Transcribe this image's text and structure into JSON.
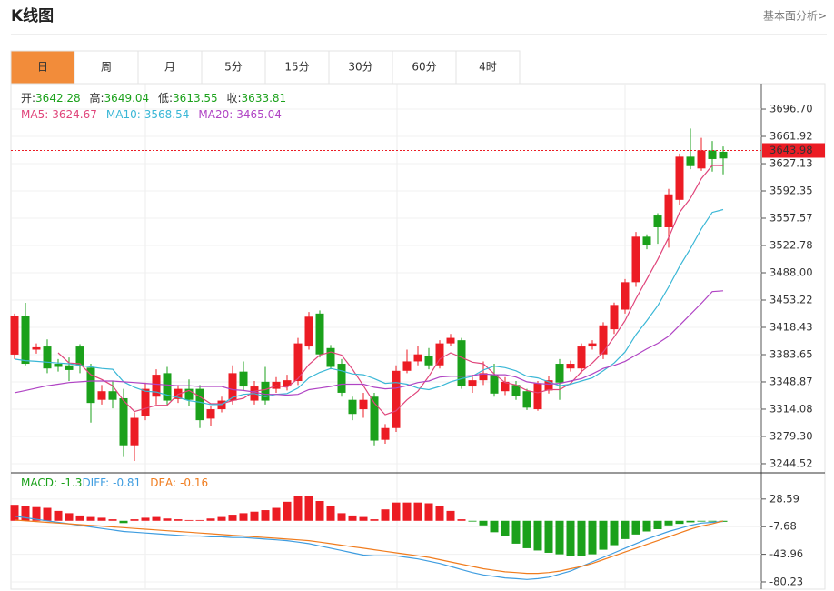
{
  "header": {
    "title": "K线图",
    "link": "基本面分析>"
  },
  "tabs": {
    "items": [
      "日",
      "周",
      "月",
      "5分",
      "15分",
      "30分",
      "60分",
      "4时"
    ],
    "active": 0
  },
  "legend_labels": {
    "open": "开:",
    "high": "高:",
    "low": "低:",
    "close": "收:"
  },
  "chart_data": [
    {
      "type": "candlestick",
      "up_color": "#ec1c24",
      "down_color": "#1ba11b",
      "open": [
        3383.7,
        3433.5,
        3390,
        3394,
        3372,
        3370,
        3394,
        3367,
        3326,
        3337,
        3328,
        3268,
        3305,
        3330,
        3360,
        3327,
        3340,
        3340,
        3302,
        3314,
        3325,
        3362,
        3325,
        3349,
        3340,
        3343,
        3350,
        3394,
        3436,
        3392,
        3372,
        3326,
        3314,
        3330,
        3275,
        3290,
        3363,
        3375,
        3382,
        3370,
        3398,
        3402,
        3343,
        3351,
        3358,
        3337,
        3345,
        3337,
        3314,
        3338,
        3372,
        3366,
        3366,
        3394,
        3384,
        3416,
        3441,
        3476,
        3534,
        3561,
        3546,
        3581,
        3636,
        3621,
        3644,
        3642.28
      ],
      "high": [
        3436,
        3449.7,
        3398,
        3403,
        3378,
        3380,
        3397,
        3372,
        3345,
        3350,
        3340,
        3310,
        3348,
        3365,
        3368,
        3345,
        3352,
        3345,
        3318,
        3330,
        3370,
        3375,
        3350,
        3368,
        3355,
        3358,
        3405,
        3438,
        3440,
        3396,
        3378,
        3330,
        3335,
        3335,
        3295,
        3370,
        3390,
        3395,
        3392,
        3402,
        3410,
        3405,
        3358,
        3375,
        3372,
        3355,
        3350,
        3340,
        3350,
        3356,
        3378,
        3376,
        3398,
        3402,
        3425,
        3450,
        3480,
        3540,
        3537,
        3564,
        3595,
        3640,
        3672,
        3660,
        3656,
        3649.04
      ],
      "low": [
        3378,
        3370,
        3385,
        3360,
        3362,
        3350,
        3360,
        3297,
        3320,
        3315,
        3253,
        3248,
        3300,
        3320,
        3320,
        3322,
        3318,
        3290,
        3293,
        3310,
        3320,
        3338,
        3320,
        3320,
        3335,
        3338,
        3345,
        3390,
        3380,
        3365,
        3330,
        3300,
        3303,
        3268,
        3270,
        3285,
        3360,
        3370,
        3365,
        3366,
        3395,
        3340,
        3335,
        3345,
        3330,
        3332,
        3326,
        3313,
        3312,
        3334,
        3326,
        3362,
        3360,
        3390,
        3378,
        3410,
        3436,
        3470,
        3518,
        3525,
        3520,
        3575,
        3620,
        3618,
        3617,
        3613.55
      ],
      "close": [
        3432.4,
        3372,
        3393,
        3366,
        3368,
        3364,
        3370,
        3322,
        3337,
        3326,
        3268,
        3303,
        3340,
        3358,
        3325,
        3340,
        3326,
        3300,
        3314,
        3325,
        3360,
        3343,
        3343,
        3325,
        3349,
        3351,
        3398,
        3432,
        3384,
        3368,
        3335,
        3308,
        3326,
        3274,
        3290,
        3363,
        3375,
        3384,
        3370,
        3398,
        3405,
        3344,
        3351,
        3360,
        3334,
        3349,
        3331,
        3316,
        3347,
        3351,
        3348,
        3372,
        3394,
        3398,
        3421,
        3447,
        3476,
        3534,
        3523,
        3546,
        3588,
        3636,
        3624,
        3644,
        3633,
        3633.81
      ],
      "series": [
        {
          "name": "MA5:",
          "color": "#e0457b",
          "values": [
            null,
            null,
            null,
            null,
            3386,
            3373,
            3372,
            3358,
            3352,
            3344,
            3325,
            3311,
            3315,
            3319,
            3319,
            3333,
            3338,
            3330,
            3321,
            3321,
            3325,
            3328,
            3337,
            3339,
            3344,
            3342,
            3353,
            3371,
            3383,
            3387,
            3383,
            3365,
            3344,
            3322,
            3307,
            3312,
            3326,
            3337,
            3356,
            3378,
            3386,
            3380,
            3374,
            3372,
            3359,
            3348,
            3345,
            3338,
            3335,
            3339,
            3339,
            3347,
            3362,
            3373,
            3387,
            3406,
            3427,
            3455,
            3480,
            3505,
            3533,
            3565,
            3583,
            3608,
            3625,
            3624.67
          ]
        },
        {
          "name": "MA10:",
          "color": "#3ab7d6",
          "values": [
            3378,
            3376,
            3375,
            3374,
            3373,
            3372,
            3370,
            3368,
            3366,
            3365,
            3349,
            3342,
            3337,
            3336,
            3332,
            3329,
            3325,
            3323,
            3320,
            3320,
            3329,
            3333,
            3334,
            3330,
            3333,
            3334,
            3341,
            3354,
            3361,
            3366,
            3363,
            3359,
            3358,
            3353,
            3347,
            3348,
            3346,
            3341,
            3339,
            3343,
            3349,
            3353,
            3356,
            3364,
            3369,
            3367,
            3363,
            3356,
            3354,
            3349,
            3344,
            3346,
            3350,
            3354,
            3363,
            3373,
            3387,
            3409,
            3427,
            3446,
            3470,
            3496,
            3519,
            3544,
            3565,
            3568.54
          ]
        },
        {
          "name": "MA20:",
          "color": "#b044c4",
          "values": [
            3335,
            3338,
            3341,
            3344,
            3346,
            3348,
            3349,
            3350,
            3350,
            3350,
            3349,
            3348,
            3347,
            3346,
            3345,
            3344,
            3344,
            3343,
            3343,
            3343,
            3339,
            3338,
            3336,
            3333,
            3333,
            3332,
            3333,
            3339,
            3341,
            3343,
            3346,
            3346,
            3346,
            3342,
            3340,
            3341,
            3344,
            3348,
            3350,
            3355,
            3356,
            3356,
            3357,
            3359,
            3358,
            3358,
            3355,
            3349,
            3347,
            3346,
            3347,
            3350,
            3353,
            3359,
            3366,
            3370,
            3375,
            3383,
            3391,
            3398,
            3407,
            3421,
            3435,
            3449,
            3464,
            3465.04
          ]
        }
      ],
      "last_price": 3643.98,
      "last_price_color": "#ec1c24",
      "ylim": [
        3235.2,
        3729.2
      ],
      "yticks": [
        {
          "value": 3696.7,
          "label": "3696.70"
        },
        3661.92,
        {
          "value": 3627.13,
          "label": "3627.13"
        },
        {
          "value": 3592.35,
          "label": "3592.35"
        },
        {
          "value": 3557.57,
          "label": "3557.57"
        },
        {
          "value": 3522.78,
          "label": "3522.78"
        },
        {
          "value": 3488,
          "label": "3488.00"
        },
        3453.22,
        3418.43,
        3383.65,
        3348.87,
        3314.08,
        {
          "value": 3279.3,
          "label": "3279.30"
        },
        3244.52
      ],
      "grid": true
    },
    {
      "type": "macd",
      "values": [
        21,
        19,
        18,
        17,
        13,
        10,
        7,
        5,
        4,
        2,
        -3,
        2,
        4,
        5,
        3,
        2,
        1,
        1,
        3,
        5,
        8,
        10,
        12,
        14,
        17,
        25,
        32,
        32,
        26,
        19,
        10,
        7,
        5,
        2,
        15,
        24,
        24,
        24,
        23,
        20,
        13,
        2,
        -1,
        -6,
        -15,
        -20,
        -30,
        -36,
        -39,
        -42,
        -44,
        -46,
        -46,
        -44,
        -38,
        -32,
        -24,
        -18,
        -14,
        -11,
        -6,
        -4,
        -2,
        -1,
        -1,
        -1.3
      ],
      "name": "MACD:",
      "label_color": "#1ba11b",
      "up_color": "#ec1c24",
      "down_color": "#1ba11b",
      "series": [
        {
          "name": "DIFF:",
          "color": "#3f9de0",
          "values": [
            6,
            4,
            2,
            0,
            -2,
            -4,
            -6,
            -8,
            -10,
            -12,
            -14,
            -15,
            -16,
            -17,
            -18,
            -19,
            -20,
            -20,
            -21,
            -21,
            -22,
            -22,
            -23,
            -24,
            -25,
            -26,
            -28,
            -30,
            -33,
            -36,
            -39,
            -42,
            -45,
            -46,
            -46,
            -46,
            -48,
            -50,
            -53,
            -56,
            -60,
            -64,
            -68,
            -71,
            -73,
            -75,
            -76,
            -77,
            -76,
            -74,
            -70,
            -66,
            -60,
            -54,
            -48,
            -42,
            -36,
            -30,
            -24,
            -19,
            -14,
            -10,
            -6,
            -3,
            -2,
            -0.81
          ]
        },
        {
          "name": "DEA:",
          "color": "#f07c1e",
          "values": [
            1,
            0,
            -1,
            -2,
            -3,
            -4,
            -5,
            -6,
            -7,
            -8,
            -9,
            -10,
            -11,
            -12,
            -13,
            -14,
            -15,
            -16,
            -17,
            -18,
            -19,
            -20,
            -21,
            -22,
            -23,
            -24,
            -25,
            -26,
            -28,
            -30,
            -32,
            -34,
            -36,
            -38,
            -40,
            -42,
            -44,
            -46,
            -48,
            -51,
            -54,
            -57,
            -60,
            -63,
            -65,
            -67,
            -68,
            -69,
            -69,
            -68,
            -66,
            -63,
            -60,
            -56,
            -51,
            -46,
            -41,
            -36,
            -31,
            -26,
            -21,
            -16,
            -11,
            -7,
            -4,
            -0.16
          ]
        }
      ],
      "ylim": [
        -89.8,
        63
      ],
      "yticks": [
        28.59,
        -7.68,
        -43.96,
        -80.23
      ],
      "grid": true
    }
  ]
}
